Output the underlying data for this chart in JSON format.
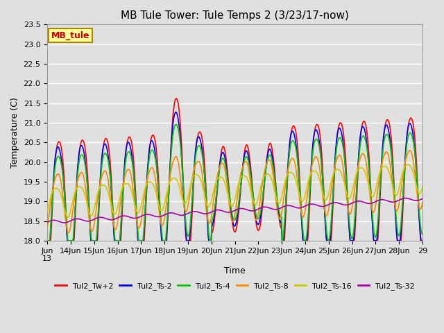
{
  "title": "MB Tule Tower: Tule Temps 2 (3/23/17-now)",
  "xlabel": "Time",
  "ylabel": "Temperature (C)",
  "ylim": [
    18.0,
    23.5
  ],
  "n_days": 16,
  "background_color": "#e0e0e0",
  "plot_bg_color": "#e0e0e0",
  "grid_color": "#ffffff",
  "series_colors": {
    "Tul2_Tw+2": "#ff0000",
    "Tul2_Ts-2": "#0000ff",
    "Tul2_Ts-4": "#00cc00",
    "Tul2_Ts-8": "#ff8800",
    "Tul2_Ts-16": "#cccc00",
    "Tul2_Ts-32": "#aa00aa"
  },
  "series_order": [
    "Tul2_Tw+2",
    "Tul2_Ts-2",
    "Tul2_Ts-4",
    "Tul2_Ts-8",
    "Tul2_Ts-16",
    "Tul2_Ts-32"
  ],
  "xtick_positions": [
    0,
    1,
    2,
    3,
    4,
    5,
    6,
    7,
    8,
    9,
    10,
    11,
    12,
    13,
    14,
    15,
    16
  ],
  "xtick_labels": [
    "Jun\n13",
    "14Jun",
    "15Jun",
    "16Jun",
    "17Jun",
    "18Jun",
    "19Jun",
    "20Jun",
    "21Jun",
    "22Jun",
    "23Jun",
    "24Jun",
    "25Jun",
    "26Jun",
    "27Jun",
    "28Jun",
    "29"
  ],
  "ytick_values": [
    18.0,
    18.5,
    19.0,
    19.5,
    20.0,
    20.5,
    21.0,
    21.5,
    22.0,
    22.5,
    23.0,
    23.5
  ],
  "annotation_text": "MB_tule",
  "annotation_color": "#cc0000",
  "annotation_bg": "#ffff99",
  "annotation_border": "#aa8800"
}
